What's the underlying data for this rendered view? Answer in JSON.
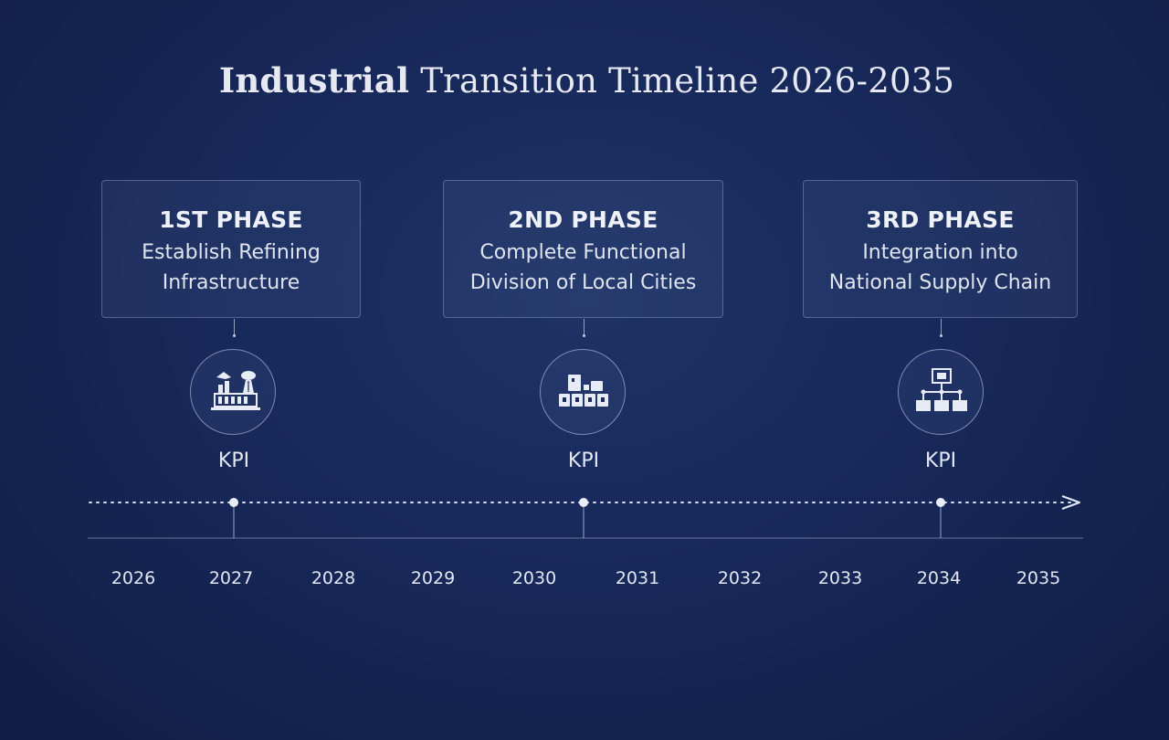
{
  "title": {
    "strong": "Industrial",
    "rest": " Transition Timeline 2026-2035"
  },
  "phases": [
    {
      "title": "1ST PHASE",
      "line1": "Establish Refining",
      "line2": "Infrastructure",
      "kpi": "KPI",
      "icon": "refinery-icon"
    },
    {
      "title": "2ND PHASE",
      "line1": "Complete Functional",
      "line2": "Division of Local Cities",
      "kpi": "KPI",
      "icon": "city-blocks-icon"
    },
    {
      "title": "3RD PHASE",
      "line1": "Integration into",
      "line2": "National Supply Chain",
      "kpi": "KPI",
      "icon": "supply-chain-icon"
    }
  ],
  "years": [
    "2026",
    "2027",
    "2028",
    "2029",
    "2030",
    "2031",
    "2032",
    "2033",
    "2034",
    "2035"
  ],
  "colors": {
    "background": "#17285a",
    "text": "#e6e9f2",
    "line": "#c8d2ea"
  }
}
